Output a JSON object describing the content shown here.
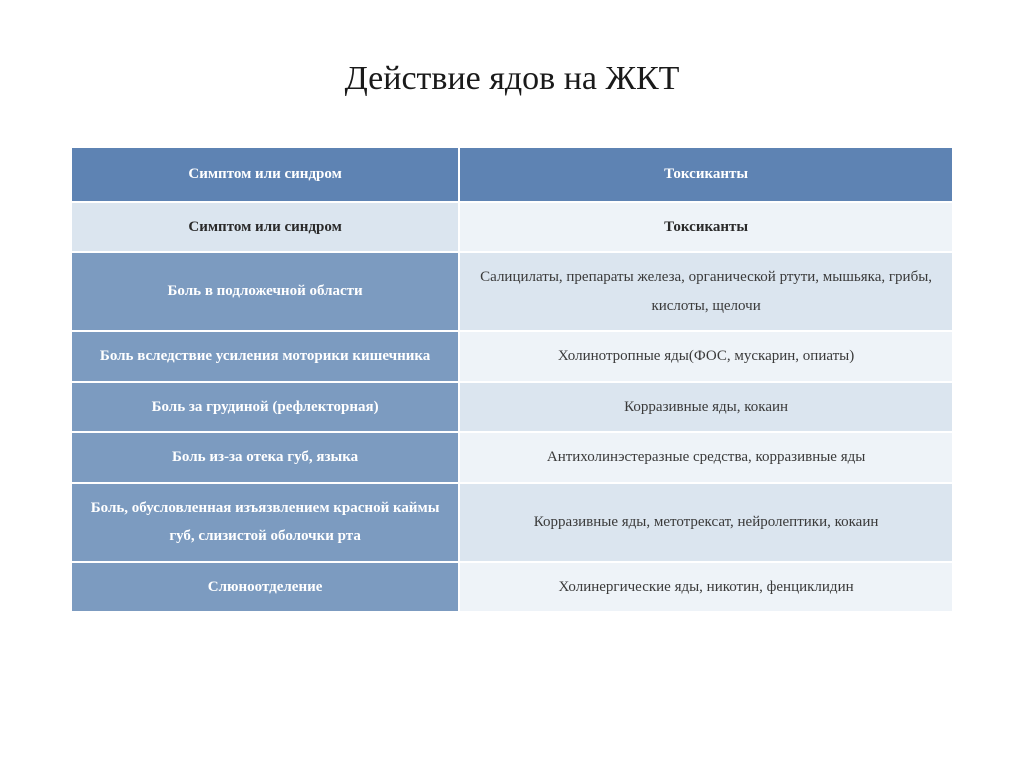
{
  "title": "Действие ядов на ЖКТ",
  "table": {
    "colors": {
      "header_bg": "#5e83b3",
      "header_fg": "#ffffff",
      "subheader_left_bg": "#dbe5ef",
      "subheader_right_bg": "#eef3f8",
      "rowheader_bg": "#7c9bc0",
      "rowheader_fg": "#ffffff",
      "cell_bg_a": "#dbe5ef",
      "cell_bg_b": "#eef3f8",
      "cell_fg": "#3a3a3a",
      "border": "#ffffff"
    },
    "col_widths_pct": [
      44,
      56
    ],
    "header": {
      "left": "Симптом или синдром",
      "right": "Токсиканты"
    },
    "subheader": {
      "left": "Симптом или синдром",
      "right": "Токсиканты"
    },
    "rows": [
      {
        "left": "Боль в подложечной области",
        "right": "Салицилаты, препараты железа, органической ртути, мышьяка, грибы, кислоты, щелочи"
      },
      {
        "left": "Боль вследствие усиления моторики кишечника",
        "right": "Холинотропные яды(ФОС, мускарин, опиаты)"
      },
      {
        "left": "Боль за грудиной (рефлекторная)",
        "right": "Корразивные яды, кокаин"
      },
      {
        "left": "Боль из-за отека губ, языка",
        "right": "Антихолинэстеразные средства, корразивные яды"
      },
      {
        "left": "Боль, обусловленная изъязвлением красной каймы губ, слизистой оболочки рта",
        "right": "Корразивные яды, метотрексат, нейролептики, кокаин"
      },
      {
        "left": "Слюноотделение",
        "right": "Холинергические яды, никотин, фенциклидин"
      }
    ]
  }
}
